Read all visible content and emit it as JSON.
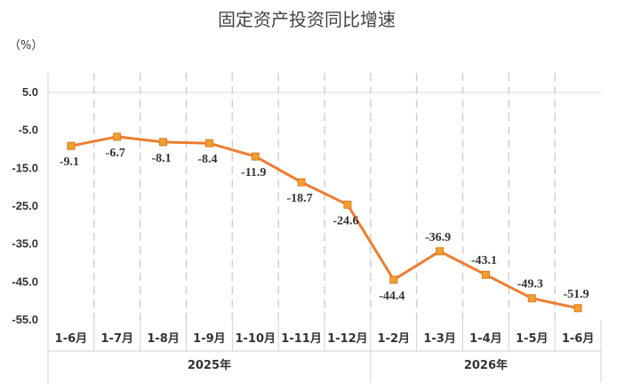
{
  "chart_data": {
    "type": "line",
    "title": "固定资产投资同比增速",
    "unit_label": "（%）",
    "categories": [
      "1-6月",
      "1-7月",
      "1-8月",
      "1-9月",
      "1-10月",
      "1-11月",
      "1-12月",
      "1-2月",
      "1-3月",
      "1-4月",
      "1-5月",
      "1-6月"
    ],
    "groups": [
      {
        "label": "2025年",
        "start": 0,
        "end": 6
      },
      {
        "label": "2026年",
        "start": 7,
        "end": 11
      }
    ],
    "values": [
      -9.1,
      -6.7,
      -8.1,
      -8.4,
      -11.9,
      -18.7,
      -24.6,
      -44.4,
      -36.9,
      -43.1,
      -49.3,
      -51.9
    ],
    "data_labels": [
      "-9.1",
      "-6.7",
      "-8.1",
      "-8.4",
      "-11.9",
      "-18.7",
      "-24.6",
      "-44.4",
      "-36.9",
      "-43.1",
      "-49.3",
      "-51.9"
    ],
    "label_positions": [
      "below",
      "below",
      "below",
      "below",
      "below",
      "below",
      "below",
      "below",
      "above",
      "above",
      "above",
      "above"
    ],
    "ylim": [
      -55,
      5
    ],
    "yticks": [
      5,
      -5,
      -15,
      -25,
      -35,
      -45,
      -55
    ],
    "ytick_labels": [
      "5.0",
      "-5.0",
      "-15.0",
      "-25.0",
      "-35.0",
      "-45.0",
      "-55.0"
    ],
    "line_color": "#ed7d31",
    "marker_color": "#f0a030",
    "grid": "vertical dashed",
    "legend": "none"
  }
}
